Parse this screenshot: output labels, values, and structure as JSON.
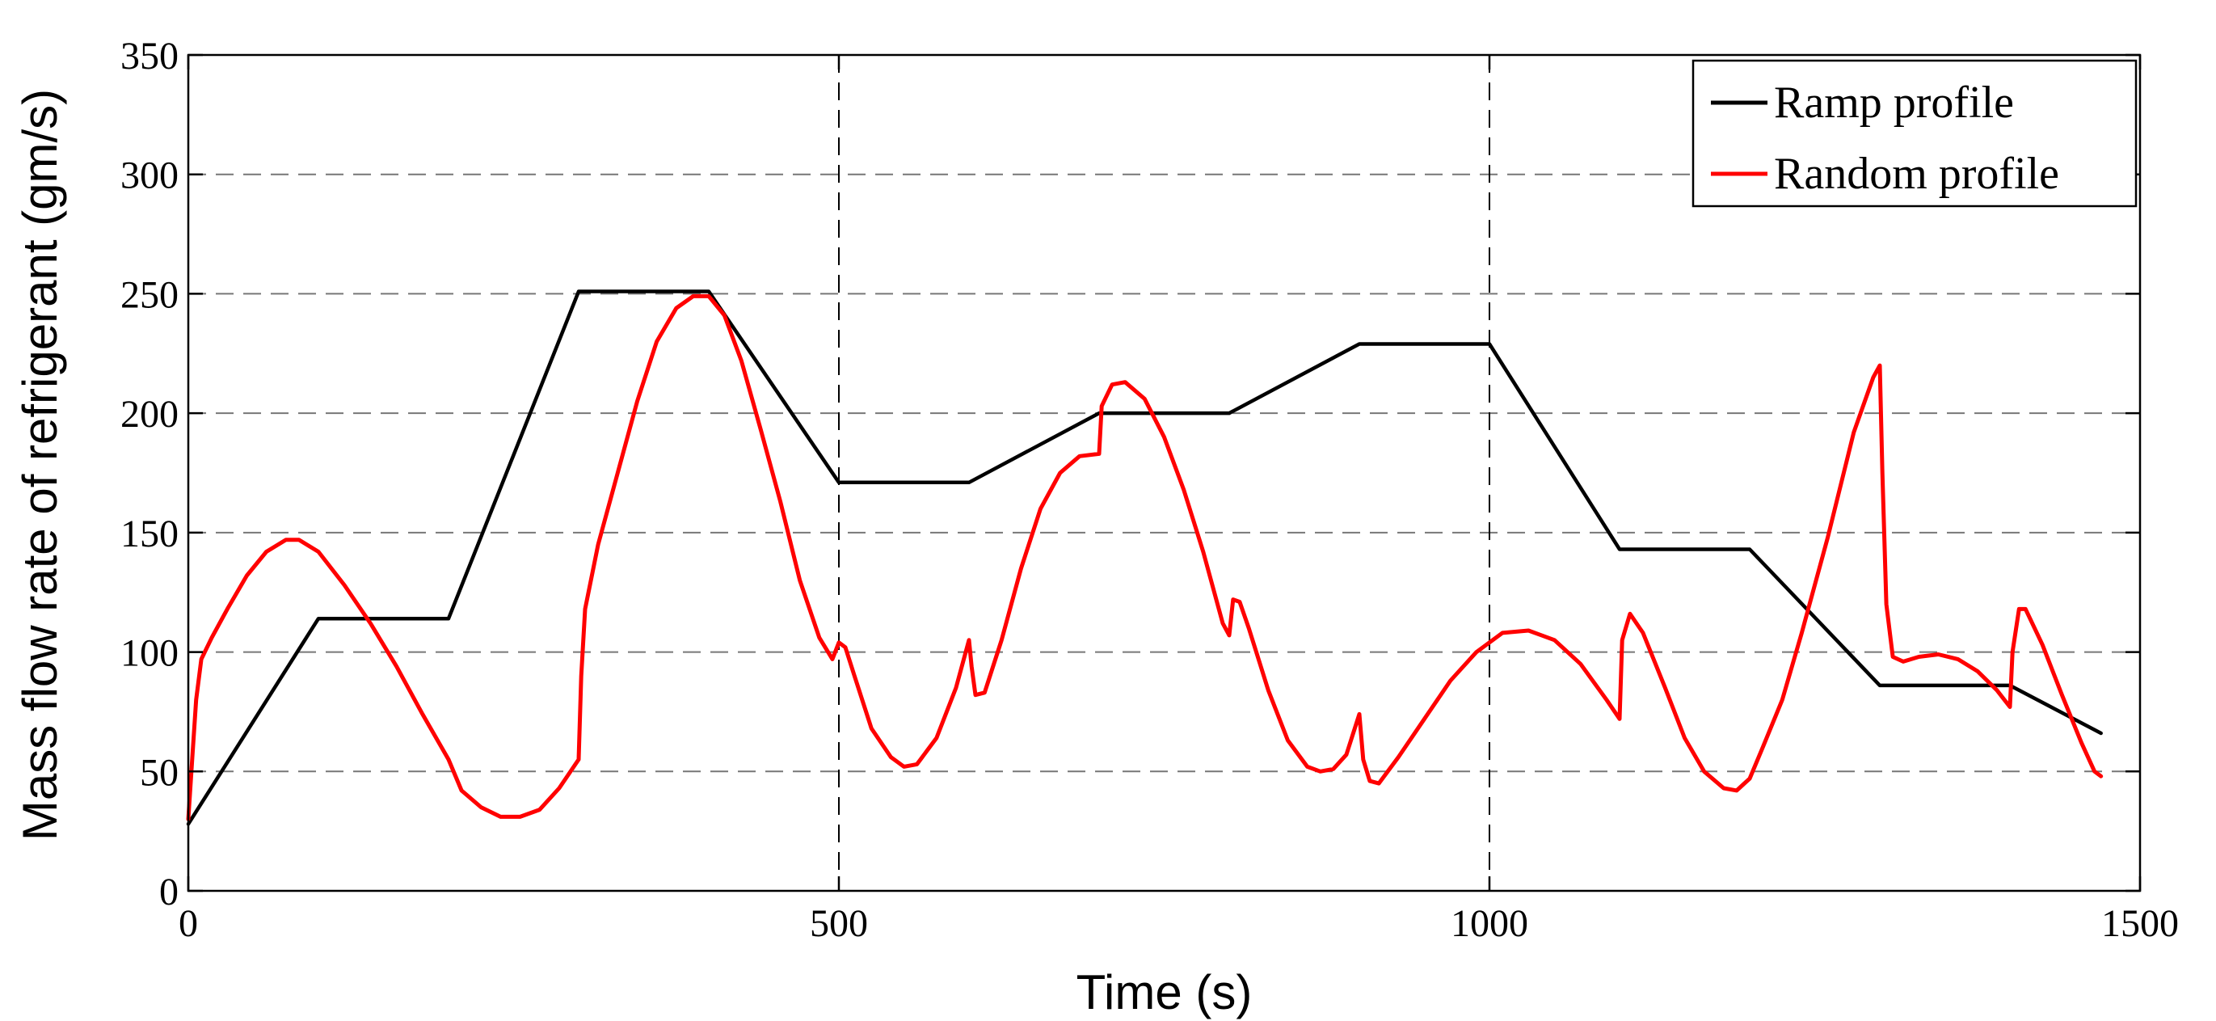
{
  "chart_data": {
    "type": "line",
    "title": "",
    "xlabel": "Time (s)",
    "ylabel": "Mass flow rate of refrigerant (gm/s)",
    "xlim": [
      0,
      1500
    ],
    "ylim": [
      0,
      350
    ],
    "xticks": [
      0,
      500,
      1000,
      1500
    ],
    "yticks": [
      0,
      50,
      100,
      150,
      200,
      250,
      300,
      350
    ],
    "grid": {
      "x": true,
      "y": true,
      "style": "dashed"
    },
    "legend": {
      "position": "top-right"
    },
    "series": [
      {
        "name": "Ramp profile",
        "color": "#000000",
        "points": [
          [
            0,
            28
          ],
          [
            100,
            114
          ],
          [
            200,
            114
          ],
          [
            300,
            251
          ],
          [
            400,
            251
          ],
          [
            500,
            171
          ],
          [
            600,
            171
          ],
          [
            700,
            200
          ],
          [
            800,
            200
          ],
          [
            900,
            229
          ],
          [
            1000,
            229
          ],
          [
            1100,
            143
          ],
          [
            1200,
            143
          ],
          [
            1300,
            86
          ],
          [
            1400,
            86
          ],
          [
            1470,
            66
          ]
        ]
      },
      {
        "name": "Random profile",
        "color": "#ff0000",
        "points": [
          [
            0,
            30
          ],
          [
            3,
            55
          ],
          [
            6,
            80
          ],
          [
            10,
            97
          ],
          [
            18,
            106
          ],
          [
            30,
            118
          ],
          [
            45,
            132
          ],
          [
            60,
            142
          ],
          [
            75,
            147
          ],
          [
            85,
            147
          ],
          [
            100,
            142
          ],
          [
            120,
            128
          ],
          [
            140,
            112
          ],
          [
            160,
            94
          ],
          [
            180,
            74
          ],
          [
            200,
            55
          ],
          [
            210,
            42
          ],
          [
            225,
            35
          ],
          [
            240,
            31
          ],
          [
            255,
            31
          ],
          [
            270,
            34
          ],
          [
            285,
            43
          ],
          [
            300,
            55
          ],
          [
            302,
            90
          ],
          [
            305,
            118
          ],
          [
            315,
            145
          ],
          [
            330,
            175
          ],
          [
            345,
            205
          ],
          [
            360,
            230
          ],
          [
            375,
            244
          ],
          [
            388,
            249
          ],
          [
            400,
            249
          ],
          [
            412,
            241
          ],
          [
            425,
            222
          ],
          [
            440,
            193
          ],
          [
            455,
            163
          ],
          [
            470,
            130
          ],
          [
            485,
            106
          ],
          [
            495,
            97
          ],
          [
            500,
            104
          ],
          [
            505,
            102
          ],
          [
            512,
            90
          ],
          [
            525,
            68
          ],
          [
            540,
            56
          ],
          [
            550,
            52
          ],
          [
            560,
            53
          ],
          [
            575,
            64
          ],
          [
            590,
            85
          ],
          [
            600,
            105
          ],
          [
            602,
            94
          ],
          [
            605,
            82
          ],
          [
            612,
            83
          ],
          [
            625,
            105
          ],
          [
            640,
            135
          ],
          [
            655,
            160
          ],
          [
            670,
            175
          ],
          [
            685,
            182
          ],
          [
            700,
            183
          ],
          [
            702,
            203
          ],
          [
            710,
            212
          ],
          [
            720,
            213
          ],
          [
            735,
            206
          ],
          [
            750,
            190
          ],
          [
            765,
            168
          ],
          [
            780,
            142
          ],
          [
            795,
            112
          ],
          [
            800,
            107
          ],
          [
            803,
            122
          ],
          [
            808,
            121
          ],
          [
            815,
            110
          ],
          [
            830,
            84
          ],
          [
            845,
            63
          ],
          [
            860,
            52
          ],
          [
            870,
            50
          ],
          [
            880,
            51
          ],
          [
            890,
            57
          ],
          [
            900,
            74
          ],
          [
            903,
            55
          ],
          [
            908,
            46
          ],
          [
            915,
            45
          ],
          [
            930,
            56
          ],
          [
            950,
            72
          ],
          [
            970,
            88
          ],
          [
            990,
            100
          ],
          [
            1010,
            108
          ],
          [
            1030,
            109
          ],
          [
            1050,
            105
          ],
          [
            1070,
            95
          ],
          [
            1090,
            80
          ],
          [
            1100,
            72
          ],
          [
            1102,
            105
          ],
          [
            1108,
            116
          ],
          [
            1118,
            108
          ],
          [
            1135,
            85
          ],
          [
            1150,
            64
          ],
          [
            1165,
            50
          ],
          [
            1180,
            43
          ],
          [
            1190,
            42
          ],
          [
            1200,
            47
          ],
          [
            1210,
            60
          ],
          [
            1225,
            80
          ],
          [
            1240,
            108
          ],
          [
            1260,
            148
          ],
          [
            1280,
            192
          ],
          [
            1295,
            215
          ],
          [
            1300,
            220
          ],
          [
            1302,
            175
          ],
          [
            1305,
            120
          ],
          [
            1310,
            98
          ],
          [
            1318,
            96
          ],
          [
            1330,
            98
          ],
          [
            1345,
            99
          ],
          [
            1360,
            97
          ],
          [
            1375,
            92
          ],
          [
            1390,
            84
          ],
          [
            1400,
            77
          ],
          [
            1402,
            100
          ],
          [
            1407,
            118
          ],
          [
            1412,
            118
          ],
          [
            1425,
            103
          ],
          [
            1440,
            82
          ],
          [
            1455,
            62
          ],
          [
            1465,
            50
          ],
          [
            1470,
            48
          ]
        ]
      }
    ]
  }
}
